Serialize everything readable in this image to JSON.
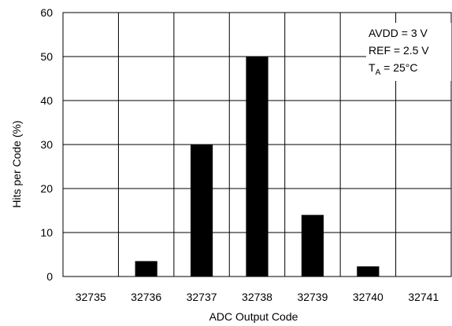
{
  "chart_data": {
    "type": "bar",
    "categories": [
      "32735",
      "32736",
      "32737",
      "32738",
      "32739",
      "32740",
      "32741"
    ],
    "values": [
      0,
      3.5,
      30,
      50,
      14,
      2.3,
      0
    ],
    "xlabel": "ADC Output Code",
    "ylabel": "Hits per Code (%)",
    "ylim": [
      0,
      60
    ],
    "yticks": [
      "0",
      "10",
      "20",
      "30",
      "40",
      "50",
      "60"
    ],
    "grid": true,
    "colors": {
      "bar": "#000000",
      "grid": "#000000"
    },
    "annotations": {
      "avdd": "AVDD = 3 V",
      "ref": "REF = 2.5 V",
      "ta_main": "T",
      "ta_sub": "A",
      "ta_rest": " = 25°C"
    }
  }
}
